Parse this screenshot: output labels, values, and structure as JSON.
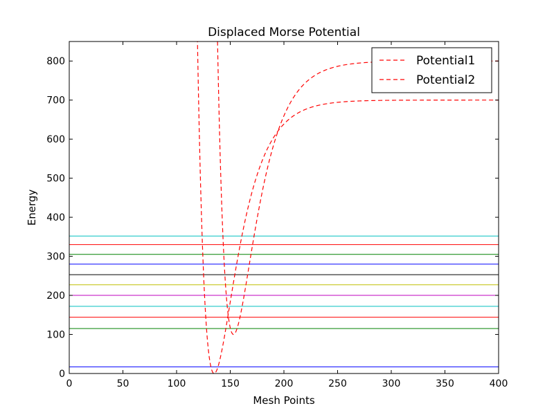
{
  "chart_data": {
    "type": "line",
    "title": "Displaced Morse Potential",
    "xlabel": "Mesh Points",
    "ylabel": "Energy",
    "xlim": [
      0,
      400
    ],
    "ylim": [
      0,
      850
    ],
    "xticks": [
      0,
      50,
      100,
      150,
      200,
      250,
      300,
      350,
      400
    ],
    "yticks": [
      0,
      100,
      200,
      300,
      400,
      500,
      600,
      700,
      800
    ],
    "grid": false,
    "legend": "top-right",
    "curves": [
      {
        "name": "Potential1",
        "color": "#ff0000",
        "style": "dashed",
        "depth": 700,
        "min_x": 135,
        "min_y": 0,
        "a": 0.0478
      },
      {
        "name": "Potential2",
        "color": "#ff0000",
        "style": "dashed",
        "depth": 700,
        "min_x": 153,
        "min_y": 100,
        "a": 0.0478
      }
    ],
    "levels": [
      {
        "y": 17,
        "color": "#0000ff"
      },
      {
        "y": 115,
        "color": "#008000"
      },
      {
        "y": 144,
        "color": "#ff0000"
      },
      {
        "y": 172,
        "color": "#00bfbf"
      },
      {
        "y": 200,
        "color": "#bf00bf"
      },
      {
        "y": 227,
        "color": "#bfbf00"
      },
      {
        "y": 253,
        "color": "#000000"
      },
      {
        "y": 280,
        "color": "#0000ff"
      },
      {
        "y": 305,
        "color": "#008000"
      },
      {
        "y": 330,
        "color": "#ff0000"
      },
      {
        "y": 352,
        "color": "#00bfbf"
      }
    ]
  }
}
